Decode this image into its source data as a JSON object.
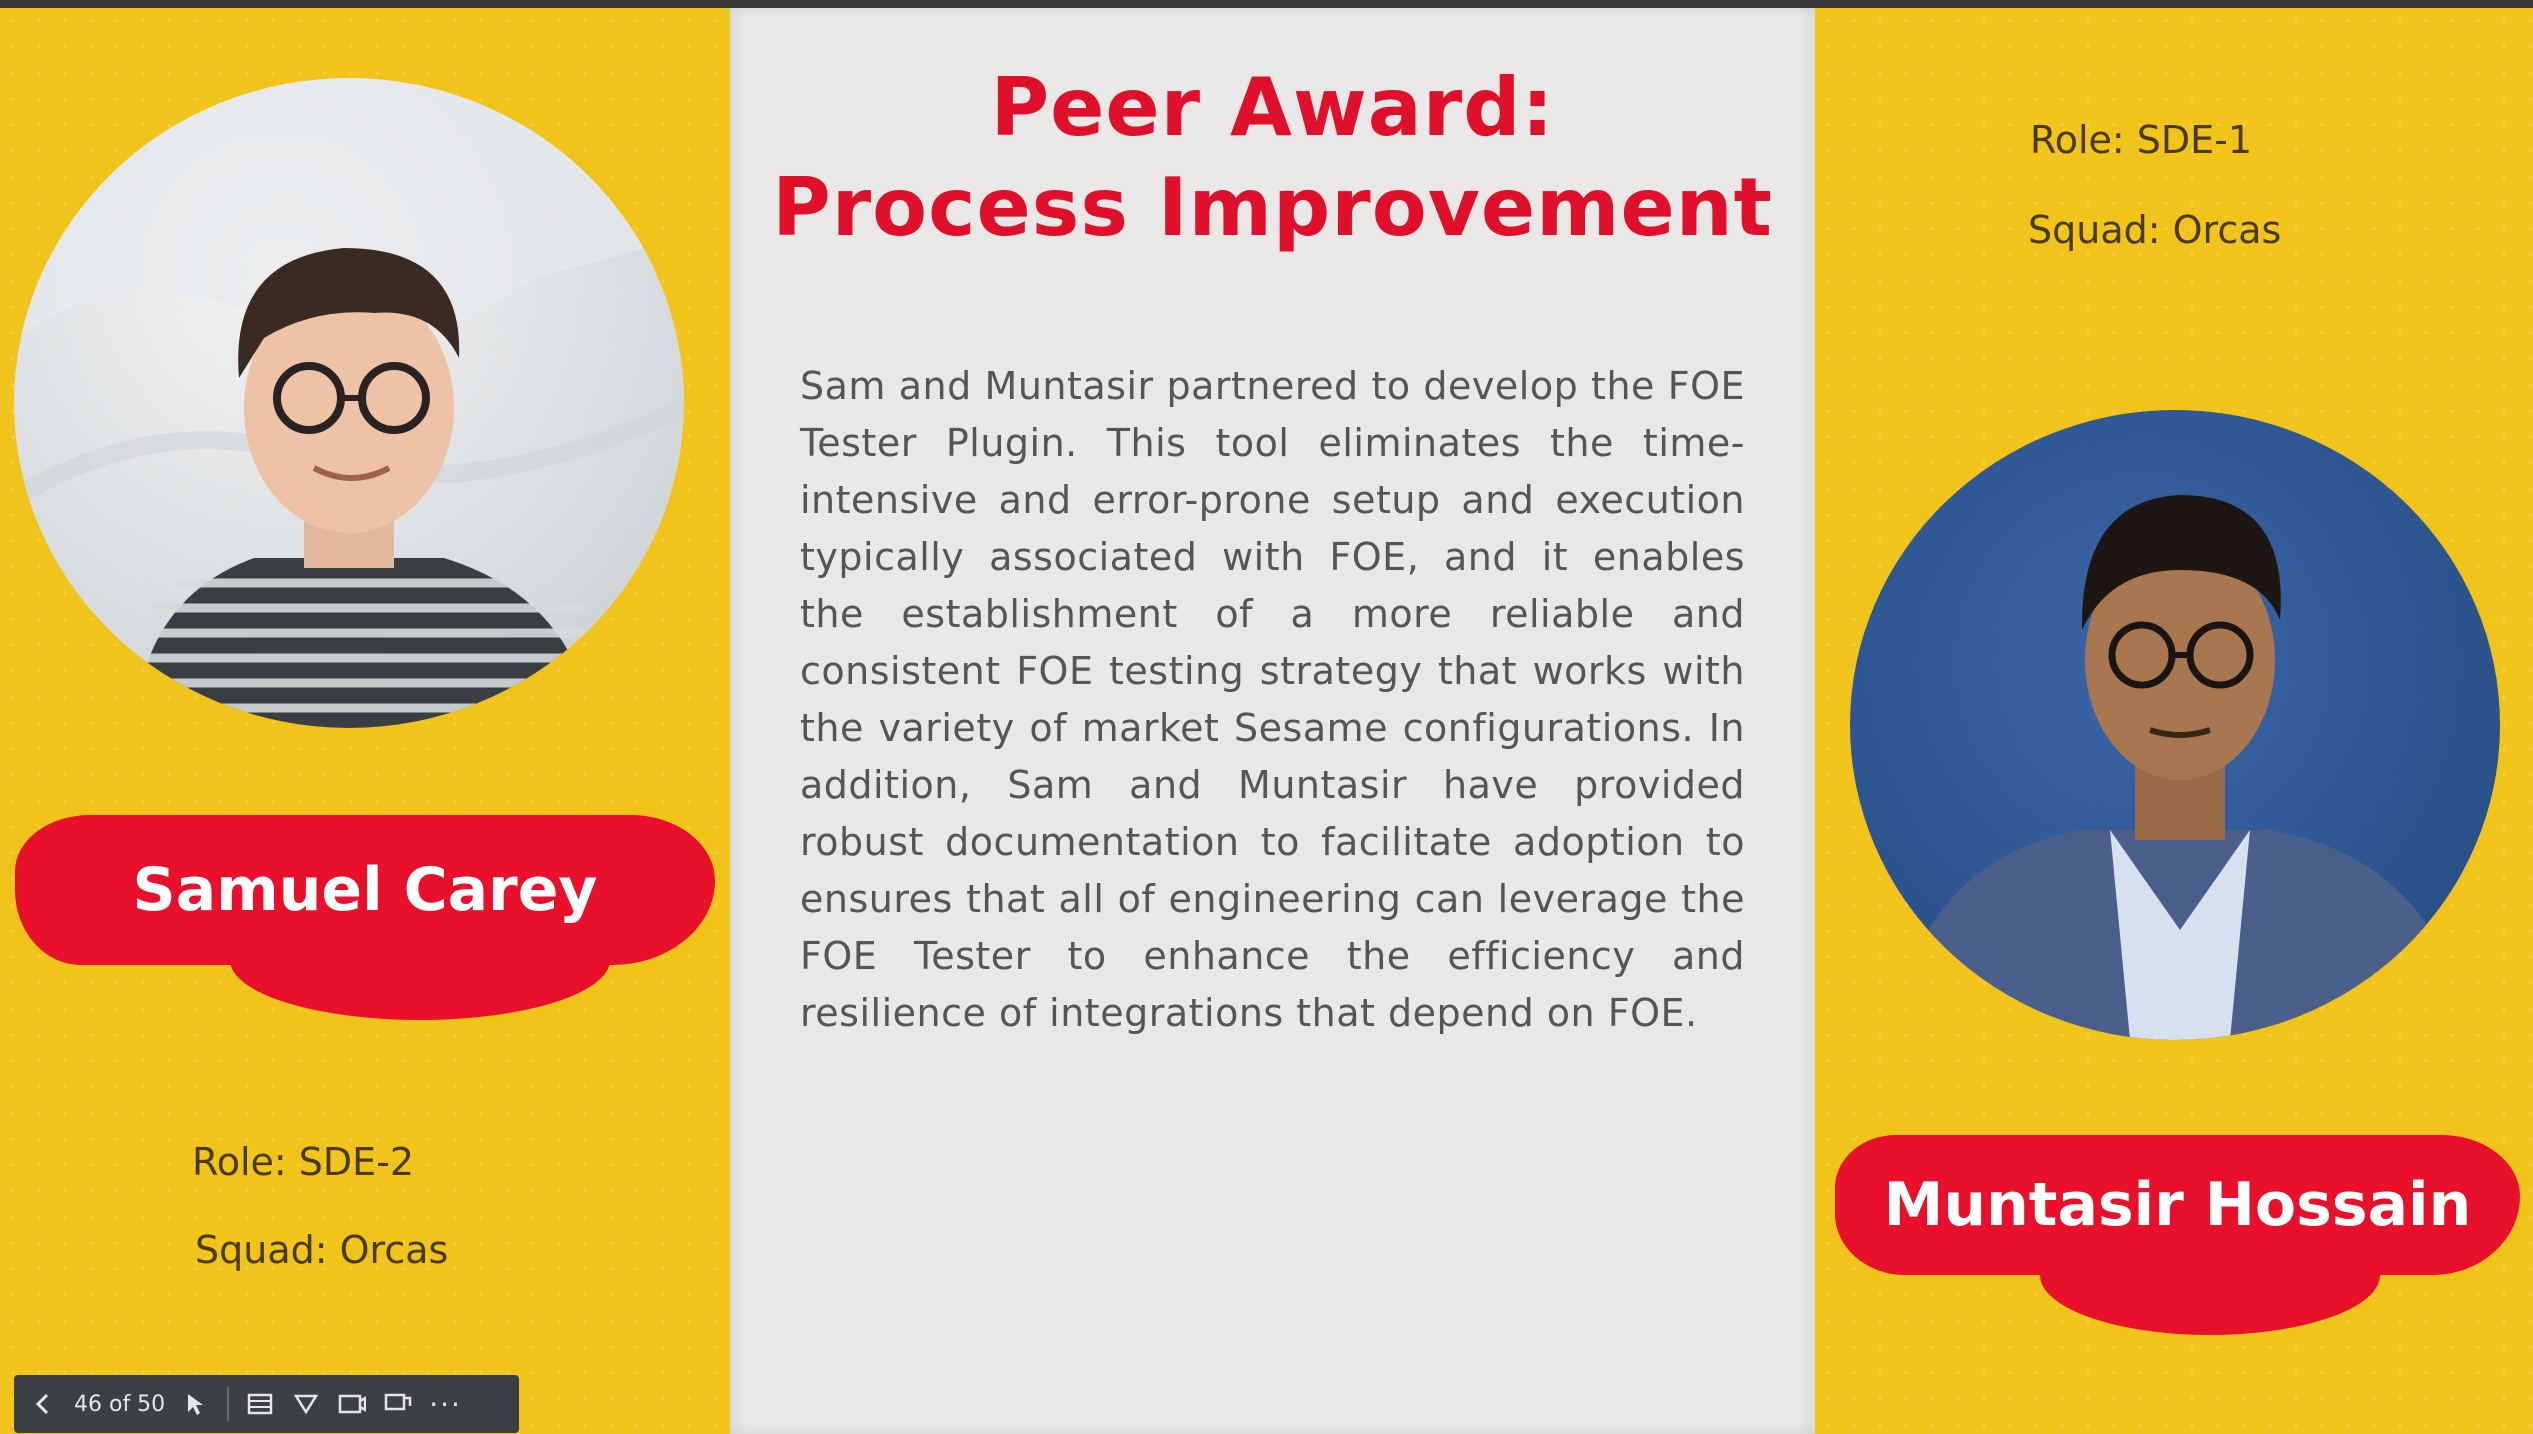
{
  "slide": {
    "title_line1": "Peer Award:",
    "title_line2": "Process Improvement",
    "description": "Sam and Muntasir partnered to develop the FOE Tester Plugin. This tool eliminates the time-intensive and error-prone setup and execution typically associated with FOE, and it enables the establishment of a more reliable and consistent FOE testing strategy that works with the variety of market Sesame configurations. In addition, Sam and Muntasir have provided robust documentation to facilitate adoption to ensures that all of engineering can leverage the FOE Tester to enhance the efficiency and resilience of integrations that depend on FOE."
  },
  "left_person": {
    "name": "Samuel Carey",
    "role": "Role: SDE-2",
    "squad": "Squad: Orcas"
  },
  "right_person": {
    "name": "Muntasir Hossain",
    "role": "Role: SDE-1",
    "squad": "Squad: Orcas"
  },
  "toolbar": {
    "page_indicator": "46 of 50",
    "prev_icon": "chevron-left-icon",
    "pointer_icon": "pointer-icon",
    "more_label": "···"
  },
  "colors": {
    "yellow": "#f0c41b",
    "red": "#e8102a",
    "panel": "#e9e8e6"
  }
}
